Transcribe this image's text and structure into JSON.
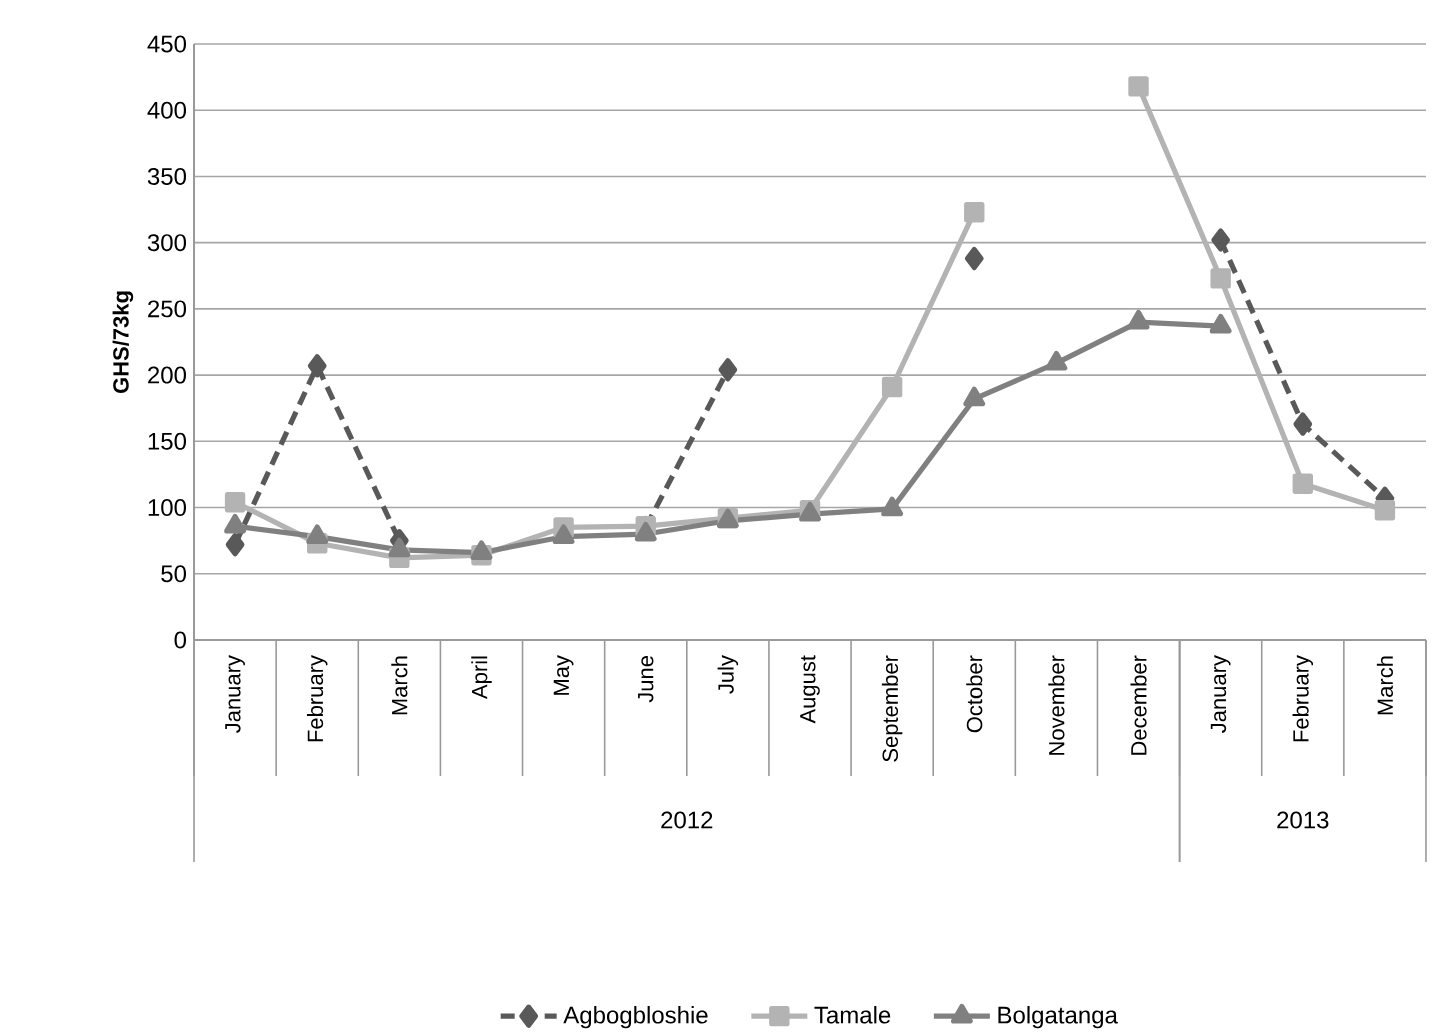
{
  "chart_data": {
    "type": "line",
    "ylabel": "GHS/73kg",
    "categories": [
      "January",
      "February",
      "March",
      "April",
      "May",
      "June",
      "July",
      "August",
      "September",
      "October",
      "November",
      "December",
      "January",
      "February",
      "March"
    ],
    "series": [
      {
        "name": "Agbogbloshie",
        "color": "#595959",
        "marker": "diamond",
        "line_style": "dashed",
        "values": [
          72,
          207,
          75,
          null,
          null,
          85,
          204,
          null,
          null,
          288,
          null,
          null,
          302,
          163,
          107
        ]
      },
      {
        "name": "Tamale",
        "color": "#b3b3b3",
        "marker": "square",
        "line_style": "solid",
        "values": [
          104,
          73,
          62,
          64,
          85,
          86,
          92,
          98,
          191,
          323,
          null,
          418,
          273,
          118,
          98
        ]
      },
      {
        "name": "Bolgatanga",
        "color": "#808080",
        "marker": "triangle",
        "line_style": "solid",
        "values": [
          86,
          78,
          68,
          66,
          78,
          80,
          90,
          95,
          99,
          182,
          209,
          240,
          237,
          null,
          null
        ]
      }
    ],
    "ylim": [
      0,
      450
    ],
    "yticks": [
      0,
      50,
      100,
      150,
      200,
      250,
      300,
      350,
      400,
      450
    ],
    "grid": "y",
    "legend": "bottom",
    "annotations": [
      "2012",
      "2013"
    ]
  }
}
